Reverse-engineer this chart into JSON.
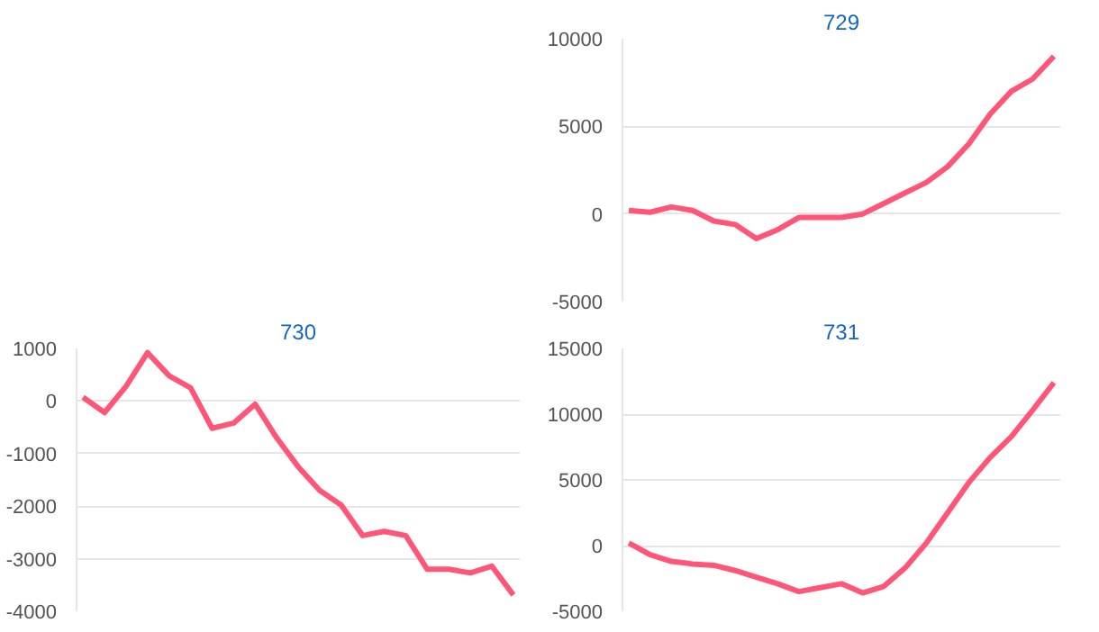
{
  "chart_data": [
    {
      "type": "line",
      "title": "729",
      "categories": [
        null,
        null,
        null,
        null,
        null,
        null,
        null,
        null,
        null,
        null,
        null,
        null,
        null,
        null,
        null,
        null,
        null,
        null,
        null,
        null,
        null
      ],
      "series": [
        {
          "color": "#ff5577",
          "values": [
            200,
            100,
            400,
            200,
            -400,
            -600,
            -1400,
            -900,
            -200,
            -200,
            -200,
            0,
            600,
            1200,
            1800,
            2700,
            4000,
            5700,
            7000,
            7700,
            9000
          ]
        }
      ],
      "ylim": [
        -5000,
        10000
      ],
      "yticks": [
        -5000,
        0,
        5000,
        10000
      ],
      "grid": "y",
      "marker": "none",
      "line_style": "solid"
    },
    {
      "type": "line",
      "title": "730",
      "categories": [
        null,
        null,
        null,
        null,
        null,
        null,
        null,
        null,
        null,
        null,
        null,
        null,
        null,
        null,
        null,
        null,
        null,
        null,
        null,
        null,
        null
      ],
      "series": [
        {
          "color": "#ff5577",
          "values": [
            70,
            -220,
            280,
            920,
            480,
            250,
            -520,
            -420,
            -60,
            -700,
            -1250,
            -1700,
            -1980,
            -2560,
            -2480,
            -2560,
            -3200,
            -3200,
            -3270,
            -3140,
            -3690
          ]
        }
      ],
      "ylim": [
        -4000,
        1000
      ],
      "yticks": [
        -4000,
        -3000,
        -2000,
        -1000,
        0,
        1000
      ],
      "grid": "y",
      "marker": "none",
      "line_style": "solid"
    },
    {
      "type": "line",
      "title": "731",
      "categories": [
        null,
        null,
        null,
        null,
        null,
        null,
        null,
        null,
        null,
        null,
        null,
        null,
        null,
        null,
        null,
        null,
        null,
        null,
        null,
        null,
        null
      ],
      "series": [
        {
          "color": "#ff5577",
          "values": [
            200,
            -700,
            -1200,
            -1400,
            -1500,
            -1900,
            -2400,
            -2900,
            -3500,
            -3200,
            -2900,
            -3600,
            -3100,
            -1700,
            200,
            2500,
            4800,
            6700,
            8300,
            10300,
            12400
          ]
        }
      ],
      "ylim": [
        -5000,
        15000
      ],
      "yticks": [
        -5000,
        0,
        5000,
        10000,
        15000
      ],
      "grid": "y",
      "marker": "none",
      "line_style": "solid"
    }
  ]
}
